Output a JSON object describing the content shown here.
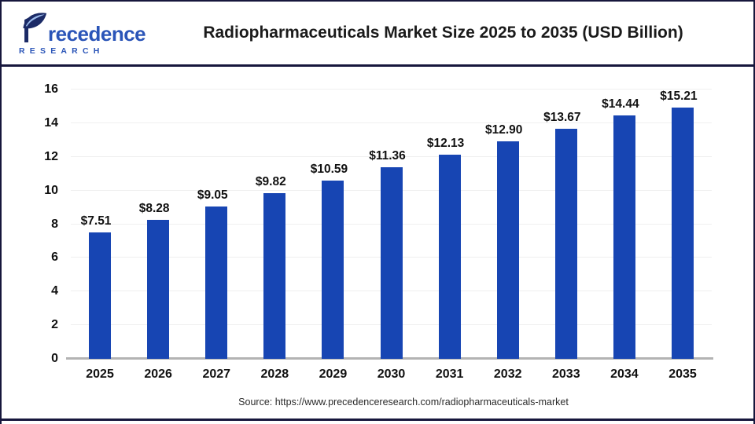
{
  "brand": {
    "wordmark_rest": "recedence",
    "wordmark_caps": "RESEARCH",
    "logo_navy": "#1b2a66",
    "logo_blue": "#2b55b8"
  },
  "header": {
    "title": "Radiopharmaceuticals Market Size 2025 to 2035 (USD Billion)"
  },
  "chart_data": {
    "type": "bar",
    "title": "Radiopharmaceuticals Market Size 2025 to 2035 (USD Billion)",
    "categories": [
      "2025",
      "2026",
      "2027",
      "2028",
      "2029",
      "2030",
      "2031",
      "2032",
      "2033",
      "2034",
      "2035"
    ],
    "values": [
      7.51,
      8.28,
      9.05,
      9.82,
      10.59,
      11.36,
      12.13,
      12.9,
      13.67,
      14.44,
      15.21
    ],
    "value_labels": [
      "$7.51",
      "$8.28",
      "$9.05",
      "$9.82",
      "$10.59",
      "$11.36",
      "$12.13",
      "$12.90",
      "$13.67",
      "$14.44",
      "$15.21"
    ],
    "xlabel": "",
    "ylabel": "",
    "ylim": [
      0,
      16
    ],
    "yticks": [
      0,
      2,
      4,
      6,
      8,
      10,
      12,
      14,
      16
    ],
    "grid": true,
    "legend": "none",
    "bar_color": "#1745b3"
  },
  "footer": {
    "source_text": "Source: https://www.precedenceresearch.com/radiopharmaceuticals-market"
  },
  "colors": {
    "frame_navy": "#16163c",
    "bar_blue": "#1745b3",
    "gridline": "#efefef",
    "baseline_gray": "#b3b3b3"
  }
}
